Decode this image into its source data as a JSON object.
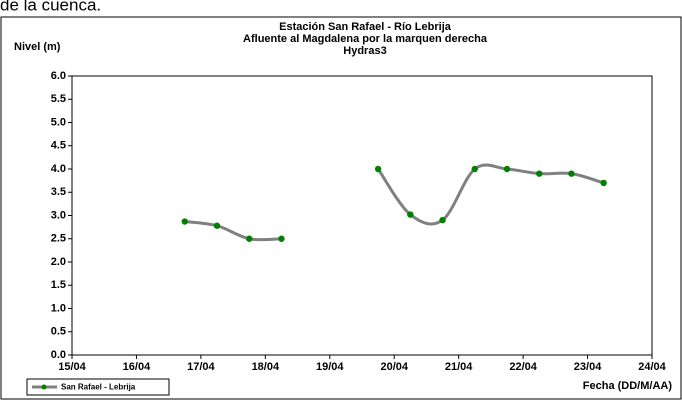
{
  "page_text": "de la cuenca.",
  "chart_data": {
    "type": "line",
    "title": "Estación San Rafael - Río Lebrija",
    "subtitle": "Afluente al Magdalena por la marquen derecha",
    "subtitle2": "Hydras3",
    "ylabel": "Nivel (m)",
    "xlabel": "Fecha (DD/M/AA)",
    "x": [
      16.75,
      17.25,
      17.75,
      18.25,
      19.25,
      19.75,
      20.25,
      20.75,
      21.25,
      21.75,
      22.25,
      22.75,
      23.25
    ],
    "series": [
      {
        "name": "San Rafael - Lebrija",
        "color": "#808080",
        "marker_color": "#008000",
        "values": [
          2.87,
          2.78,
          2.5,
          2.5,
          null,
          4.0,
          3.02,
          2.9,
          4.0,
          4.0,
          3.9,
          3.9,
          3.7
        ]
      }
    ],
    "xlim": [
      15,
      24
    ],
    "xticks": [
      {
        "value": 15,
        "label": "15/04"
      },
      {
        "value": 16,
        "label": "16/04"
      },
      {
        "value": 17,
        "label": "17/04"
      },
      {
        "value": 18,
        "label": "18/04"
      },
      {
        "value": 19,
        "label": "19/04"
      },
      {
        "value": 20,
        "label": "20/04"
      },
      {
        "value": 21,
        "label": "21/04"
      },
      {
        "value": 22,
        "label": "22/04"
      },
      {
        "value": 23,
        "label": "23/04"
      },
      {
        "value": 24,
        "label": "24/04"
      }
    ],
    "ylim": [
      0,
      6
    ],
    "yticks": [
      {
        "value": 0,
        "label": "0.0"
      },
      {
        "value": 0.5,
        "label": "0.5"
      },
      {
        "value": 1,
        "label": "1.0"
      },
      {
        "value": 1.5,
        "label": "1.5"
      },
      {
        "value": 2,
        "label": "2.0"
      },
      {
        "value": 2.5,
        "label": "2.5"
      },
      {
        "value": 3,
        "label": "3.0"
      },
      {
        "value": 3.5,
        "label": "3.5"
      },
      {
        "value": 4,
        "label": "4.0"
      },
      {
        "value": 4.5,
        "label": "4.5"
      },
      {
        "value": 5,
        "label": "5.0"
      },
      {
        "value": 5.5,
        "label": "5.5"
      },
      {
        "value": 6,
        "label": "6.0"
      }
    ],
    "grid": false,
    "legend": "bottom-left"
  }
}
